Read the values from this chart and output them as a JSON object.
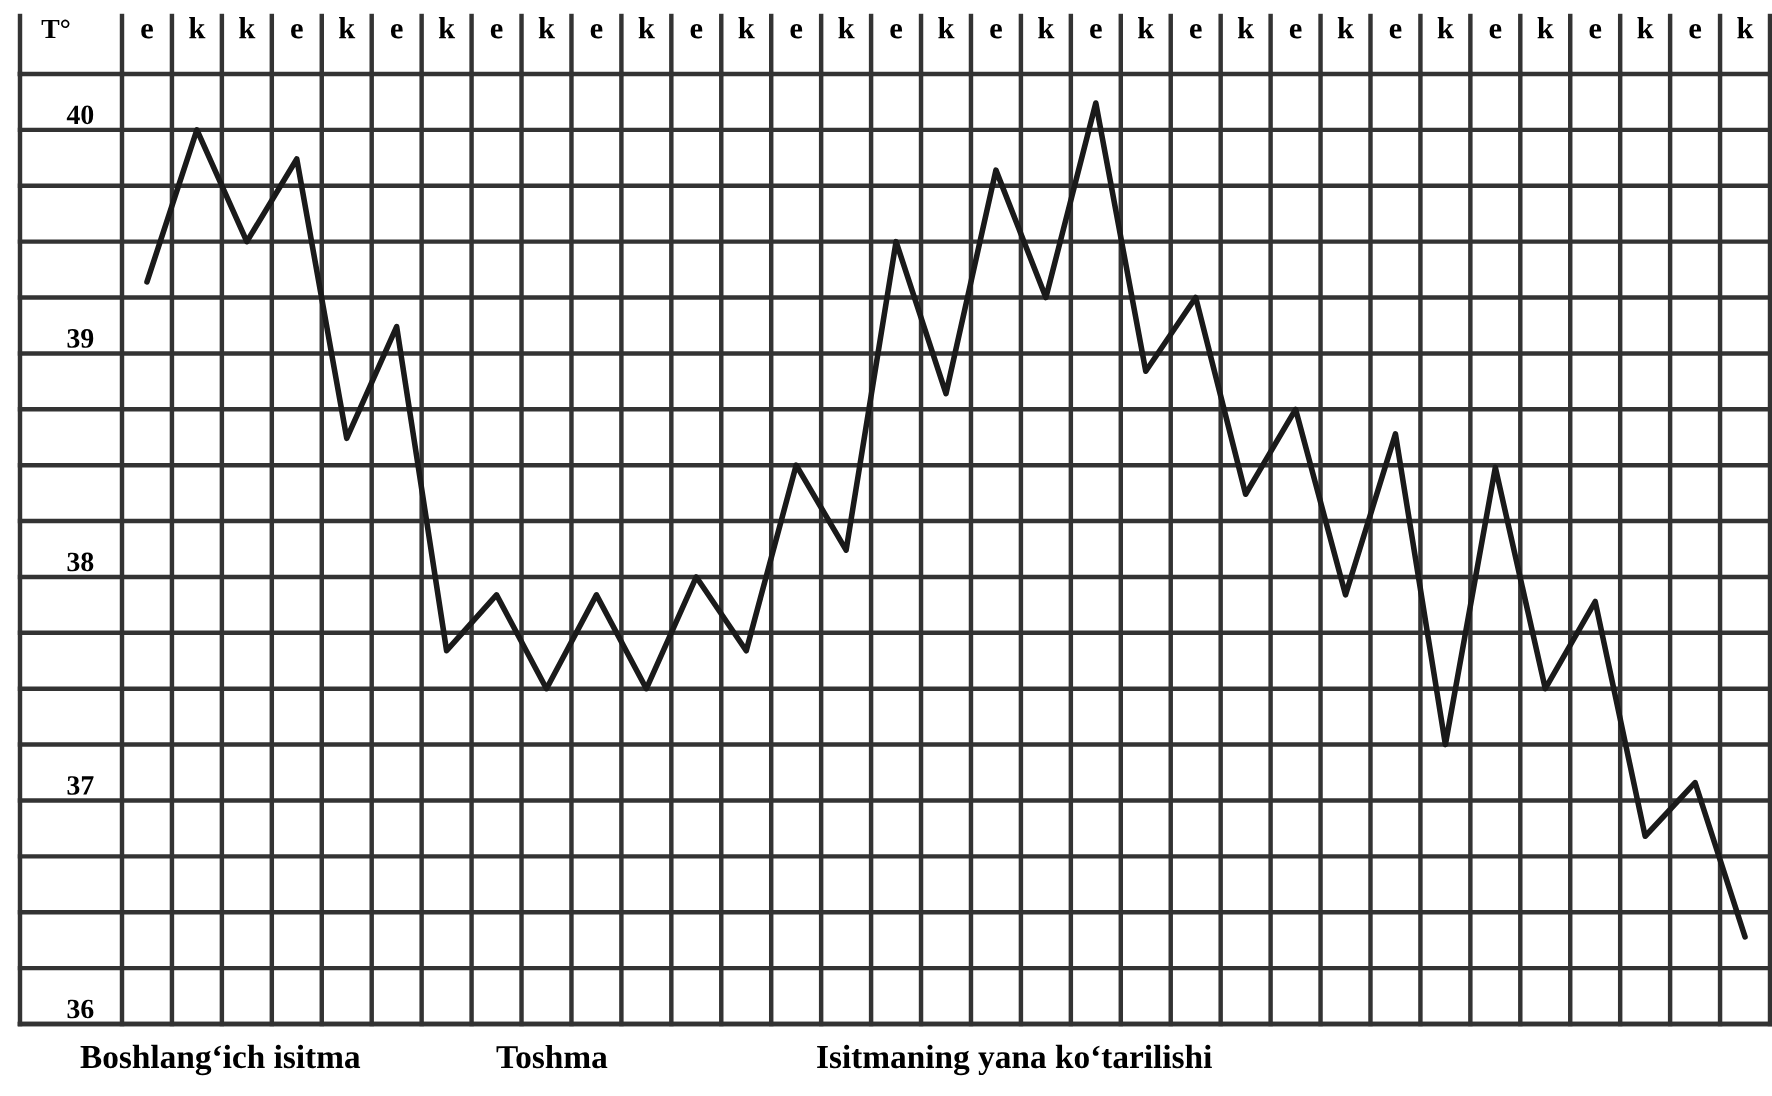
{
  "chart_data": {
    "type": "line",
    "ylabel": "T°",
    "categories": [
      "e",
      "k",
      "k",
      "e",
      "k",
      "e",
      "k",
      "e",
      "k",
      "e",
      "k",
      "e",
      "k",
      "e",
      "k",
      "e",
      "k",
      "e",
      "k",
      "e",
      "k",
      "e",
      "k",
      "e",
      "k",
      "e",
      "k",
      "e",
      "k",
      "e",
      "k",
      "e",
      "k"
    ],
    "series": [
      {
        "color": "#1a1a1a",
        "values": [
          39.32,
          40.0,
          39.5,
          39.87,
          38.62,
          39.12,
          37.67,
          37.92,
          37.5,
          37.92,
          37.5,
          38.0,
          37.67,
          38.5,
          38.12,
          39.5,
          38.82,
          39.82,
          39.25,
          40.12,
          38.92,
          39.25,
          38.37,
          38.75,
          37.92,
          38.64,
          37.25,
          38.49,
          37.5,
          37.89,
          36.84,
          37.08,
          36.39
        ]
      }
    ],
    "ylim": [
      36,
      40.25
    ],
    "yticks": [
      36,
      {
        "value": 36.25,
        "label": null
      },
      {
        "value": 36.5,
        "label": null
      },
      {
        "value": 36.75,
        "label": null
      },
      37,
      {
        "value": 37.25,
        "label": null
      },
      {
        "value": 37.5,
        "label": null
      },
      {
        "value": 37.75,
        "label": null
      },
      38,
      {
        "value": 38.25,
        "label": null
      },
      {
        "value": 38.5,
        "label": null
      },
      {
        "value": 38.75,
        "label": null
      },
      39,
      {
        "value": 39.25,
        "label": null
      },
      {
        "value": 39.5,
        "label": null
      },
      {
        "value": 39.75,
        "label": null
      },
      40
    ],
    "grid": true,
    "marker": "none",
    "line_style": "solid",
    "legend": false,
    "annotations": [
      "Boshlang‘ich isitma",
      "Toshma",
      "Isitmaning yana ko‘tarilishi"
    ]
  }
}
